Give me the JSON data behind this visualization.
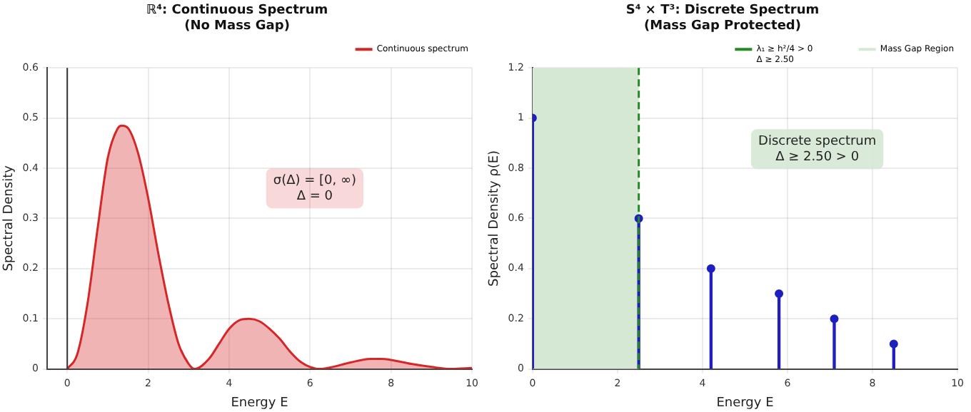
{
  "chart_data": [
    {
      "type": "area",
      "title": "ℝ⁴: Continuous Spectrum\n(No Mass Gap)",
      "xlabel": "Energy E",
      "ylabel": "Spectral Density",
      "xlim": [
        -0.5,
        10
      ],
      "xticks": [
        0,
        2,
        4,
        6,
        8,
        10
      ],
      "ylim": [
        0,
        0.6
      ],
      "yticks": [
        0,
        0.1,
        0.2,
        0.3,
        0.4,
        0.5,
        0.6
      ],
      "grid": true,
      "legend": "top right",
      "annotations": [
        "σ(Δ) = [0, ∞)\nΔ = 0"
      ],
      "ref_lines": [
        {
          "axis": "x",
          "value": 0,
          "color": "#333333"
        }
      ],
      "x": [
        0,
        0.25,
        0.5,
        0.75,
        1.0,
        1.25,
        1.35,
        1.5,
        1.75,
        2.0,
        2.25,
        2.5,
        2.75,
        3.0,
        3.15,
        3.5,
        3.75,
        4.0,
        4.25,
        4.5,
        4.75,
        5.0,
        5.25,
        5.5,
        5.75,
        6.0,
        6.25,
        6.5,
        7.0,
        7.5,
        7.75,
        8.0,
        8.5,
        9.0,
        9.5,
        10
      ],
      "series": [
        {
          "name": "Continuous spectrum",
          "color": "#d62728",
          "values": [
            0,
            0.03,
            0.13,
            0.28,
            0.42,
            0.48,
            0.485,
            0.48,
            0.43,
            0.34,
            0.23,
            0.13,
            0.05,
            0.01,
            0,
            0.02,
            0.05,
            0.08,
            0.097,
            0.1,
            0.095,
            0.08,
            0.06,
            0.035,
            0.015,
            0.004,
            0,
            0.003,
            0.013,
            0.02,
            0.02,
            0.018,
            0.01,
            0.004,
            0,
            0.002
          ]
        }
      ]
    },
    {
      "type": "lollipop",
      "title": "S⁴ × T³: Discrete Spectrum\n(Mass Gap Protected)",
      "xlabel": "Energy E",
      "ylabel": "Spectral Density ρ(E)",
      "xlim": [
        0,
        10
      ],
      "xticks": [
        0,
        2,
        4,
        6,
        8,
        10
      ],
      "ylim": [
        0,
        1.2
      ],
      "yticks": [
        0,
        0.2,
        0.4,
        0.6,
        0.8,
        1.0,
        1.2
      ],
      "grid": true,
      "legend": "top right",
      "marker": "circle",
      "annotations": [
        "Discrete spectrum\nΔ ≥ 2.50 > 0"
      ],
      "ref_lines": [
        {
          "axis": "x",
          "value": 2.5,
          "label": "λ₁ ≥ h²/4 > 0\nΔ ≥ 2.50",
          "color": "#228b22",
          "line_style": "dashed"
        }
      ],
      "bands": [
        {
          "axis": "x",
          "from": 0,
          "to": 2.5,
          "label": "Mass Gap Region",
          "color": "#d5e8d4"
        }
      ],
      "x": [
        0,
        2.5,
        4.2,
        5.8,
        7.1,
        8.5
      ],
      "series": [
        {
          "color": "#1f1fbf",
          "values": [
            1.0,
            0.6,
            0.4,
            0.3,
            0.2,
            0.1
          ]
        }
      ]
    }
  ]
}
